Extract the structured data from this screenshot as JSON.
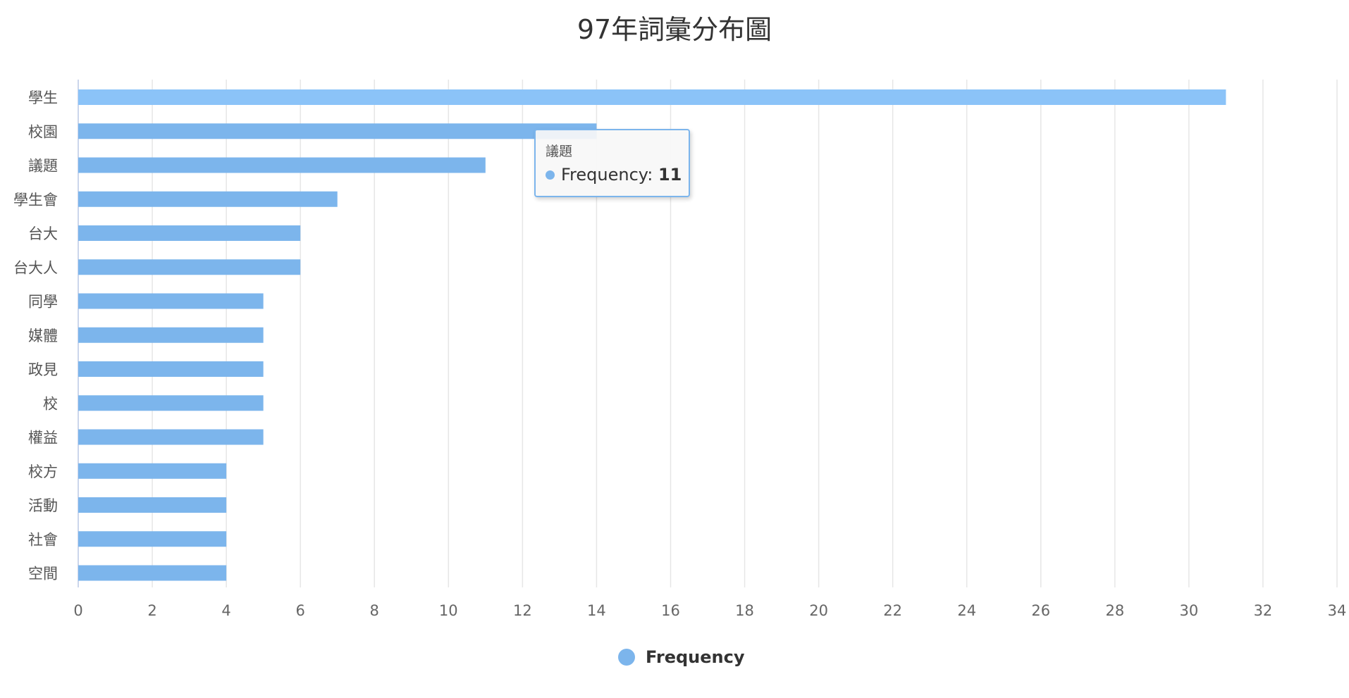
{
  "chart_data": {
    "type": "bar",
    "orientation": "horizontal",
    "title": "97年詞彙分布圖",
    "categories": [
      "學生",
      "校園",
      "議題",
      "學生會",
      "台大",
      "台大人",
      "同學",
      "媒體",
      "政見",
      "校",
      "權益",
      "校方",
      "活動",
      "社會",
      "空間"
    ],
    "series": [
      {
        "name": "Frequency",
        "color": "#7cb5ec",
        "values": [
          31,
          14,
          11,
          7,
          6,
          6,
          5,
          5,
          5,
          5,
          5,
          4,
          4,
          4,
          4
        ]
      }
    ],
    "xlim": [
      0,
      34
    ],
    "xticks": [
      0,
      2,
      4,
      6,
      8,
      10,
      12,
      14,
      16,
      18,
      20,
      22,
      24,
      26,
      28,
      30,
      32,
      34
    ],
    "grid": true,
    "legend": {
      "position": "bottom-center",
      "label": "Frequency"
    },
    "hovered_index": 2
  },
  "tooltip": {
    "category": "議題",
    "series_name": "Frequency",
    "separator": ": ",
    "value": "11"
  },
  "colors": {
    "bar": "#7cb5ec",
    "bar_hover": "#8bc3f8",
    "grid": "#e6e6e6",
    "axis": "#ccd6eb"
  }
}
